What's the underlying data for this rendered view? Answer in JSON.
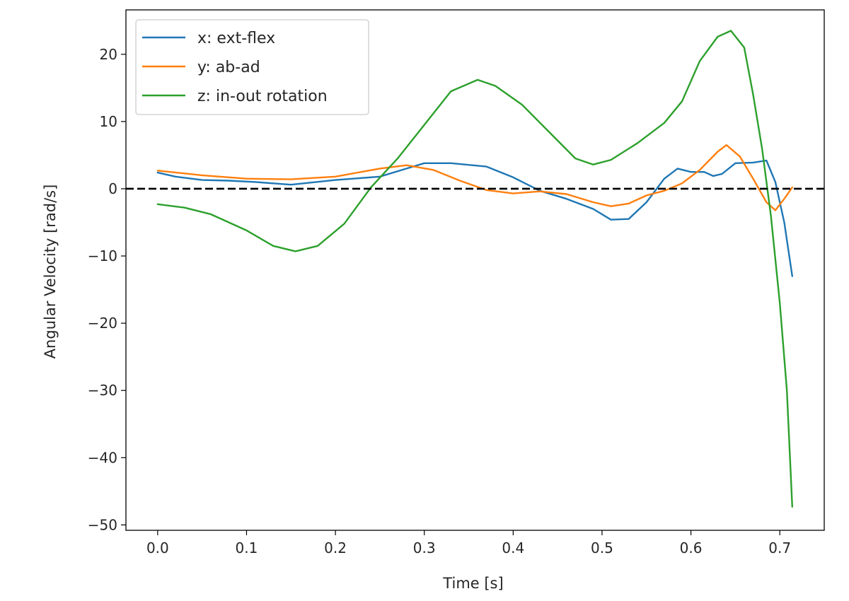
{
  "chart_data": {
    "type": "line",
    "title": "",
    "xlabel": "Time [s]",
    "ylabel": "Angular Velocity [rad/s]",
    "xlim": [
      -0.0357,
      0.75
    ],
    "ylim": [
      -50.8,
      26.6
    ],
    "xticks": [
      0.0,
      0.1,
      0.2,
      0.3,
      0.4,
      0.5,
      0.6,
      0.7
    ],
    "xtick_labels": [
      "0.0",
      "0.1",
      "0.2",
      "0.3",
      "0.4",
      "0.5",
      "0.6",
      "0.7"
    ],
    "yticks": [
      20,
      10,
      0,
      -10,
      -20,
      -30,
      -40,
      -50
    ],
    "ytick_labels": [
      "20",
      "10",
      "0",
      "−10",
      "−20",
      "−30",
      "−40",
      "−50"
    ],
    "grid": false,
    "legend_position": "upper-left",
    "reference_line": {
      "y": 0,
      "style": "dashed",
      "color": "#000000"
    },
    "series": [
      {
        "name": "x: ext-flex",
        "color": "#1f77b4",
        "points": [
          [
            0.0,
            2.4
          ],
          [
            0.02,
            1.8
          ],
          [
            0.05,
            1.3
          ],
          [
            0.08,
            1.2
          ],
          [
            0.11,
            1.0
          ],
          [
            0.15,
            0.6
          ],
          [
            0.2,
            1.3
          ],
          [
            0.25,
            1.8
          ],
          [
            0.28,
            3.0
          ],
          [
            0.3,
            3.8
          ],
          [
            0.33,
            3.8
          ],
          [
            0.37,
            3.3
          ],
          [
            0.4,
            1.7
          ],
          [
            0.43,
            -0.3
          ],
          [
            0.46,
            -1.5
          ],
          [
            0.49,
            -3.0
          ],
          [
            0.51,
            -4.6
          ],
          [
            0.53,
            -4.5
          ],
          [
            0.55,
            -2.0
          ],
          [
            0.57,
            1.5
          ],
          [
            0.585,
            3.0
          ],
          [
            0.6,
            2.5
          ],
          [
            0.615,
            2.5
          ],
          [
            0.625,
            1.9
          ],
          [
            0.635,
            2.2
          ],
          [
            0.65,
            3.8
          ],
          [
            0.67,
            3.9
          ],
          [
            0.685,
            4.2
          ],
          [
            0.695,
            1.0
          ],
          [
            0.705,
            -5.0
          ],
          [
            0.714,
            -13.0
          ]
        ]
      },
      {
        "name": "y: ab-ad",
        "color": "#ff7f0e",
        "points": [
          [
            0.0,
            2.7
          ],
          [
            0.05,
            2.0
          ],
          [
            0.1,
            1.5
          ],
          [
            0.15,
            1.4
          ],
          [
            0.2,
            1.8
          ],
          [
            0.25,
            3.0
          ],
          [
            0.28,
            3.5
          ],
          [
            0.31,
            2.8
          ],
          [
            0.34,
            1.2
          ],
          [
            0.37,
            -0.2
          ],
          [
            0.4,
            -0.7
          ],
          [
            0.43,
            -0.4
          ],
          [
            0.46,
            -0.8
          ],
          [
            0.49,
            -2.0
          ],
          [
            0.51,
            -2.6
          ],
          [
            0.53,
            -2.2
          ],
          [
            0.55,
            -1.0
          ],
          [
            0.57,
            -0.3
          ],
          [
            0.59,
            0.8
          ],
          [
            0.61,
            2.8
          ],
          [
            0.63,
            5.5
          ],
          [
            0.64,
            6.5
          ],
          [
            0.655,
            4.8
          ],
          [
            0.67,
            1.5
          ],
          [
            0.685,
            -2.0
          ],
          [
            0.695,
            -3.2
          ],
          [
            0.705,
            -1.5
          ],
          [
            0.714,
            0.2
          ]
        ]
      },
      {
        "name": "z: in-out rotation",
        "color": "#2ca02c",
        "points": [
          [
            0.0,
            -2.3
          ],
          [
            0.03,
            -2.8
          ],
          [
            0.06,
            -3.8
          ],
          [
            0.1,
            -6.2
          ],
          [
            0.13,
            -8.5
          ],
          [
            0.155,
            -9.3
          ],
          [
            0.18,
            -8.5
          ],
          [
            0.21,
            -5.2
          ],
          [
            0.24,
            0.2
          ],
          [
            0.27,
            4.5
          ],
          [
            0.3,
            9.5
          ],
          [
            0.33,
            14.5
          ],
          [
            0.36,
            16.2
          ],
          [
            0.38,
            15.3
          ],
          [
            0.41,
            12.5
          ],
          [
            0.44,
            8.5
          ],
          [
            0.47,
            4.5
          ],
          [
            0.49,
            3.6
          ],
          [
            0.51,
            4.3
          ],
          [
            0.54,
            6.8
          ],
          [
            0.57,
            9.8
          ],
          [
            0.59,
            13.0
          ],
          [
            0.61,
            19.0
          ],
          [
            0.63,
            22.6
          ],
          [
            0.645,
            23.5
          ],
          [
            0.66,
            21.0
          ],
          [
            0.67,
            14.0
          ],
          [
            0.68,
            6.0
          ],
          [
            0.69,
            -4.0
          ],
          [
            0.7,
            -17.0
          ],
          [
            0.708,
            -30.0
          ],
          [
            0.714,
            -47.3
          ]
        ]
      }
    ]
  }
}
